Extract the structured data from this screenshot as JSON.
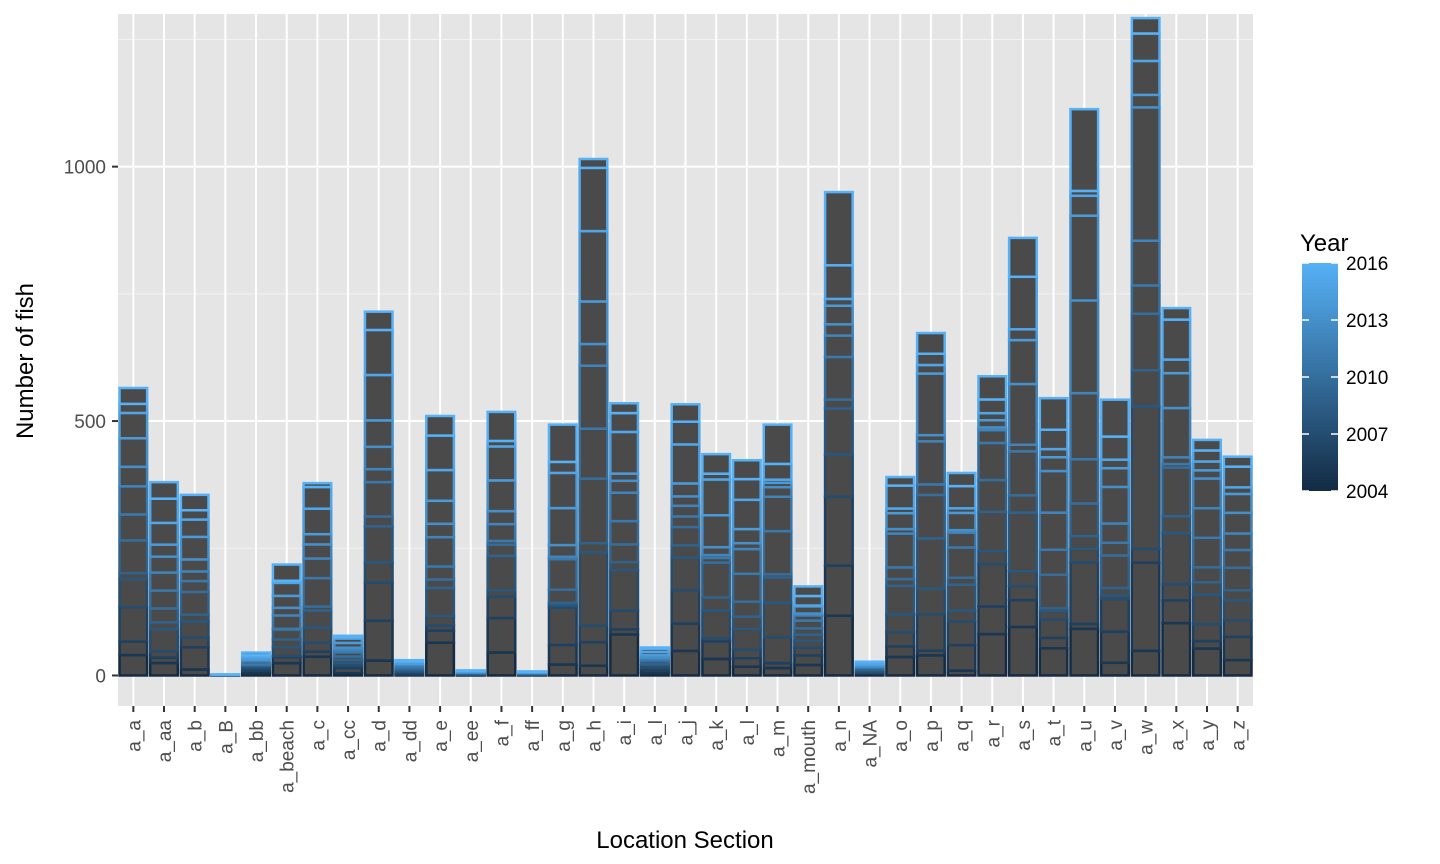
{
  "chart_data": {
    "type": "bar",
    "stacked": true,
    "xlabel": "Location Section",
    "ylabel": "Number of fish",
    "ylim": [
      -60,
      1300
    ],
    "yticks": [
      0,
      500,
      1000
    ],
    "grid": true,
    "legend": {
      "title": "Year",
      "placement": "right",
      "kind": "colorbar",
      "range": [
        2004,
        2016
      ],
      "ticks": [
        2016,
        2013,
        2010,
        2007,
        2004
      ],
      "low_color": "#132B43",
      "high_color": "#56B1F7"
    },
    "bar_fill": "#4a4a4a",
    "categories": [
      "a_a",
      "a_aa",
      "a_b",
      "a_B",
      "a_bb",
      "a_beach",
      "a_c",
      "a_cc",
      "a_d",
      "a_dd",
      "a_e",
      "a_ee",
      "a_f",
      "a_ff",
      "a_g",
      "a_h",
      "a_i",
      "a_l",
      "a_j",
      "a_k",
      "a_l",
      "a_m",
      "a_mouth",
      "a_n",
      "a_NA",
      "a_o",
      "a_p",
      "a_q",
      "a_r",
      "a_s",
      "a_t",
      "a_u",
      "a_v",
      "a_w",
      "a_x",
      "a_y",
      "a_z"
    ],
    "values": [
      565,
      380,
      355,
      2,
      45,
      218,
      378,
      78,
      715,
      30,
      510,
      10,
      518,
      8,
      493,
      1015,
      535,
      55,
      533,
      435,
      423,
      493,
      175,
      950,
      27,
      390,
      673,
      398,
      588,
      860,
      545,
      1113,
      542,
      1292,
      722,
      463,
      430
    ]
  }
}
